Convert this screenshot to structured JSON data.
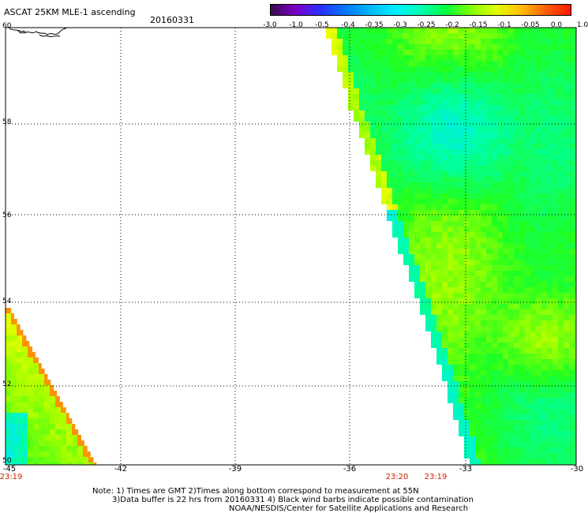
{
  "header": {
    "title": "ASCAT 25KM MLE-1 ascending",
    "date": "20160331"
  },
  "colorbar": {
    "labels": [
      "-3.0",
      "-1.0",
      "-0.5",
      "-0.4",
      "-0.35",
      "-0.3",
      "-0.25",
      "-0.2",
      "-0.15",
      "-0.1",
      "-0.05",
      "0.0",
      "1.0"
    ],
    "colors": [
      "#3a0a4a",
      "#7a00c8",
      "#2a30ff",
      "#0078ff",
      "#00b8ff",
      "#00f0ff",
      "#00ffb0",
      "#00ff40",
      "#80ff00",
      "#e0ff00",
      "#ffc000",
      "#ff6000",
      "#ff1800"
    ]
  },
  "axes": {
    "lat_labels": [
      "60",
      "58",
      "56",
      "54",
      "52",
      "50"
    ],
    "lon_labels": [
      "-45",
      "-42",
      "-39",
      "-36",
      "-33",
      "-30"
    ],
    "time_labels": [
      "23:19",
      "23:20",
      "23:19"
    ]
  },
  "notes": {
    "line1": "Note: 1) Times are GMT 2)Times along bottom correspond to measurement at 55N",
    "line2": "3)Data buffer is 22 hrs from 20160331 4) Black wind barbs indicate possible contamination",
    "line3": "NOAA/NESDIS/Center for Satellite Applications and Research"
  }
}
